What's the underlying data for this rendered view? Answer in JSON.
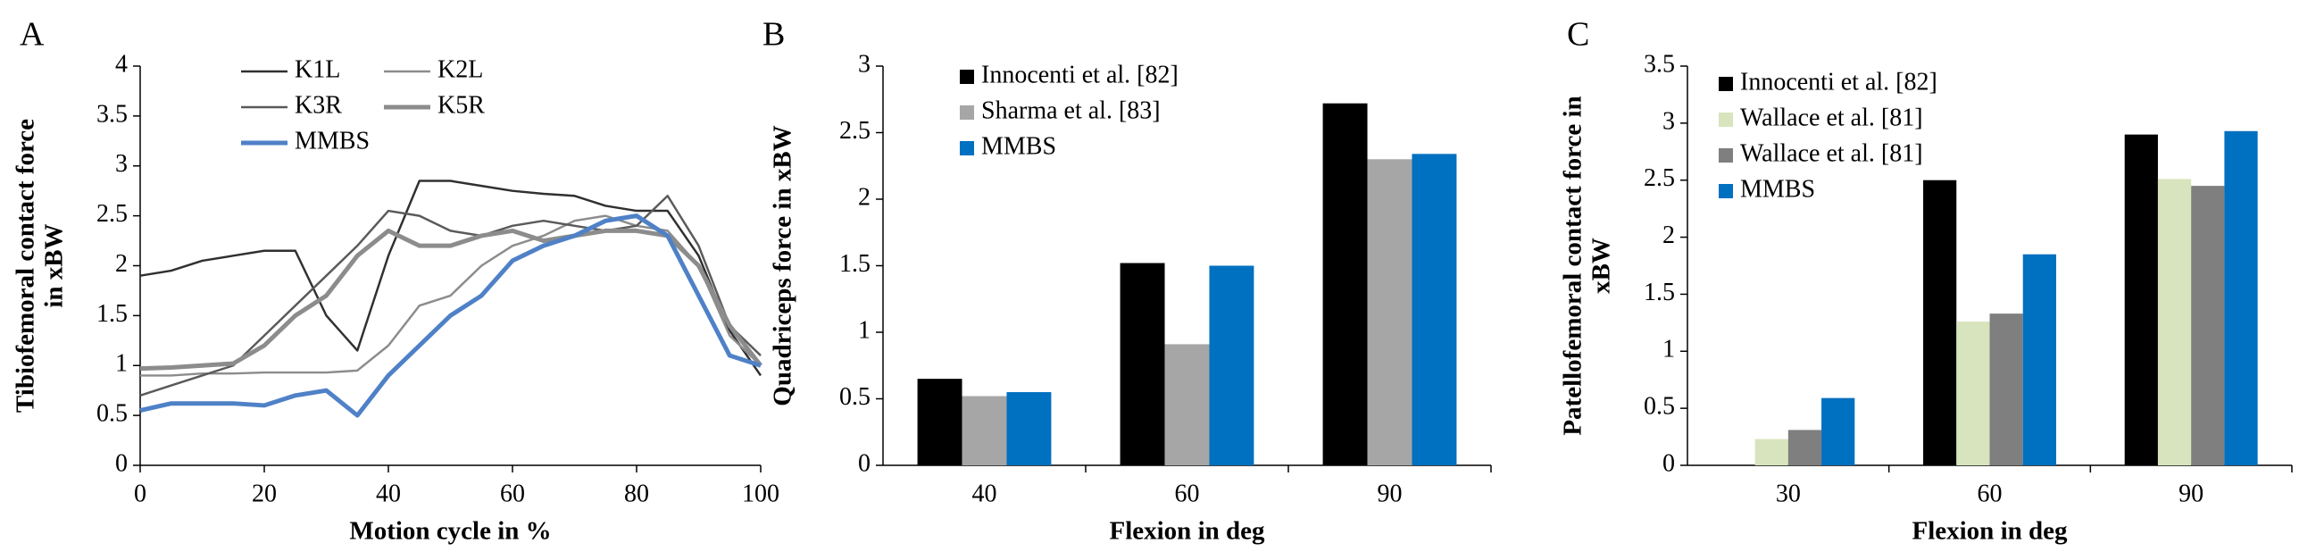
{
  "chart_data": [
    {
      "type": "line",
      "label": "A",
      "xlabel": "Motion cycle in %",
      "ylabel": [
        "Tibiofemoral contact force",
        "in xBW"
      ],
      "x": [
        0,
        5,
        10,
        15,
        20,
        25,
        30,
        35,
        40,
        45,
        50,
        55,
        60,
        65,
        70,
        75,
        80,
        85,
        90,
        95,
        100
      ],
      "xlim": [
        0,
        100
      ],
      "xticks": [
        0,
        20,
        40,
        60,
        80,
        100
      ],
      "ylim": [
        0,
        4
      ],
      "yticks": [
        0,
        0.5,
        1,
        1.5,
        2,
        2.5,
        3,
        3.5,
        4
      ],
      "series": [
        {
          "name": "K1L",
          "color": "#303030",
          "linewidth": 1.5,
          "values": [
            1.9,
            1.95,
            2.05,
            2.1,
            2.15,
            2.15,
            1.5,
            1.15,
            2.1,
            2.85,
            2.85,
            2.8,
            2.75,
            2.72,
            2.7,
            2.6,
            2.55,
            2.55,
            2.1,
            1.35,
            0.9
          ]
        },
        {
          "name": "K2L",
          "color": "#8c8c8c",
          "linewidth": 1.5,
          "values": [
            0.9,
            0.9,
            0.92,
            0.92,
            0.93,
            0.93,
            0.93,
            0.95,
            1.2,
            1.6,
            1.7,
            2.0,
            2.2,
            2.3,
            2.45,
            2.5,
            2.4,
            2.35,
            2.0,
            1.3,
            1.0
          ]
        },
        {
          "name": "K3R",
          "color": "#5a5a5a",
          "linewidth": 1.5,
          "values": [
            0.7,
            0.8,
            0.9,
            1.0,
            1.3,
            1.6,
            1.9,
            2.2,
            2.55,
            2.5,
            2.35,
            2.3,
            2.4,
            2.45,
            2.4,
            2.35,
            2.4,
            2.7,
            2.2,
            1.4,
            1.1
          ]
        },
        {
          "name": "K5R",
          "color": "#8c8c8c",
          "linewidth": 3,
          "values": [
            0.97,
            0.98,
            1.0,
            1.02,
            1.2,
            1.5,
            1.7,
            2.1,
            2.35,
            2.2,
            2.2,
            2.3,
            2.35,
            2.25,
            2.3,
            2.35,
            2.35,
            2.3,
            2.0,
            1.4,
            1.0
          ]
        },
        {
          "name": "MMBS",
          "color": "#4f81c7",
          "linewidth": 3,
          "values": [
            0.55,
            0.62,
            0.62,
            0.62,
            0.6,
            0.7,
            0.75,
            0.5,
            0.9,
            1.2,
            1.5,
            1.7,
            2.05,
            2.2,
            2.3,
            2.45,
            2.5,
            2.3,
            1.7,
            1.1,
            1.0
          ]
        }
      ]
    },
    {
      "type": "bar",
      "label": "B",
      "xlabel": "Flexion in deg",
      "ylabel": [
        "Quadriceps force in xBW"
      ],
      "categories": [
        "40",
        "60",
        "90"
      ],
      "ylim": [
        0,
        3
      ],
      "yticks": [
        0,
        0.5,
        1,
        1.5,
        2,
        2.5,
        3
      ],
      "series": [
        {
          "name": "Innocenti et al. [82]",
          "color": "#000000",
          "values": [
            0.65,
            1.52,
            2.72
          ]
        },
        {
          "name": "Sharma et al. [83]",
          "color": "#a6a6a6",
          "values": [
            0.52,
            0.91,
            2.3
          ]
        },
        {
          "name": "MMBS",
          "color": "#0070c0",
          "values": [
            0.55,
            1.5,
            2.34
          ]
        }
      ]
    },
    {
      "type": "bar",
      "label": "C",
      "xlabel": "Flexion in deg",
      "ylabel": [
        "Patellofemoral contact force in",
        "xBW"
      ],
      "categories": [
        "30",
        "60",
        "90"
      ],
      "ylim": [
        0,
        3.5
      ],
      "yticks": [
        0,
        0.5,
        1,
        1.5,
        2,
        2.5,
        3,
        3.5
      ],
      "series": [
        {
          "name": "Innocenti et al. [82]",
          "color": "#000000",
          "values": [
            null,
            2.5,
            2.9
          ]
        },
        {
          "name": "Wallace et al. [81]",
          "color": "#d7e4bd",
          "values": [
            0.23,
            1.26,
            2.51
          ]
        },
        {
          "name": "Wallace et al. [81]",
          "color": "#7f7f7f",
          "values": [
            0.31,
            1.33,
            2.45
          ]
        },
        {
          "name": "MMBS",
          "color": "#0070c0",
          "values": [
            0.59,
            1.85,
            2.93
          ]
        }
      ]
    }
  ]
}
